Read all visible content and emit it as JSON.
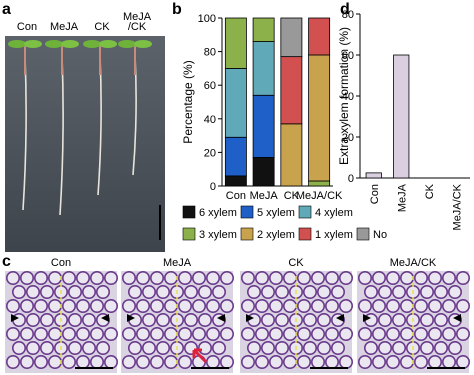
{
  "panel_labels": [
    "a",
    "b",
    "d",
    "c"
  ],
  "photo_labels": [
    {
      "lines": [
        "Con"
      ]
    },
    {
      "lines": [
        "MeJA"
      ]
    },
    {
      "lines": [
        "CK"
      ]
    },
    {
      "lines": [
        "MeJA",
        "/CK"
      ]
    }
  ],
  "micrograph_labels": [
    "Con",
    "MeJA",
    "CK",
    "MeJA/CK"
  ],
  "chart_data": [
    {
      "type": "bar",
      "stacked": true,
      "y_label": "Percentage (%)",
      "categories": [
        "Con",
        "MeJA",
        "CK",
        "MeJA/CK"
      ],
      "ylim": [
        0,
        100
      ],
      "yticks": [
        0,
        20,
        40,
        60,
        80,
        100
      ],
      "series": [
        {
          "name": "6 xylem",
          "color": "#111111",
          "values": [
            6,
            17,
            0,
            0
          ]
        },
        {
          "name": "5 xylem",
          "color": "#1f5fc8",
          "values": [
            23,
            37,
            0,
            0
          ]
        },
        {
          "name": "4 xylem",
          "color": "#5fa9b8",
          "values": [
            41,
            32,
            0,
            0
          ]
        },
        {
          "name": "3 xylem",
          "color": "#8cb04a",
          "values": [
            30,
            14,
            0,
            3
          ]
        },
        {
          "name": "2 xylem",
          "color": "#c9a24e",
          "values": [
            0,
            0,
            37,
            75
          ]
        },
        {
          "name": "1 xylem",
          "color": "#d2504f",
          "values": [
            0,
            0,
            40,
            22
          ]
        },
        {
          "name": "No",
          "color": "#999999",
          "values": [
            0,
            0,
            23,
            0
          ]
        }
      ]
    },
    {
      "type": "bar",
      "stacked": false,
      "y_label": "Extra xylem formation (%)",
      "categories": [
        "Con",
        "MeJA",
        "CK",
        "MeJA/CK"
      ],
      "ylim": [
        0,
        80
      ],
      "yticks": [
        0,
        20,
        40,
        60,
        80
      ],
      "color": "#d9cfe0",
      "values": [
        2.5,
        60,
        0,
        0
      ]
    }
  ]
}
